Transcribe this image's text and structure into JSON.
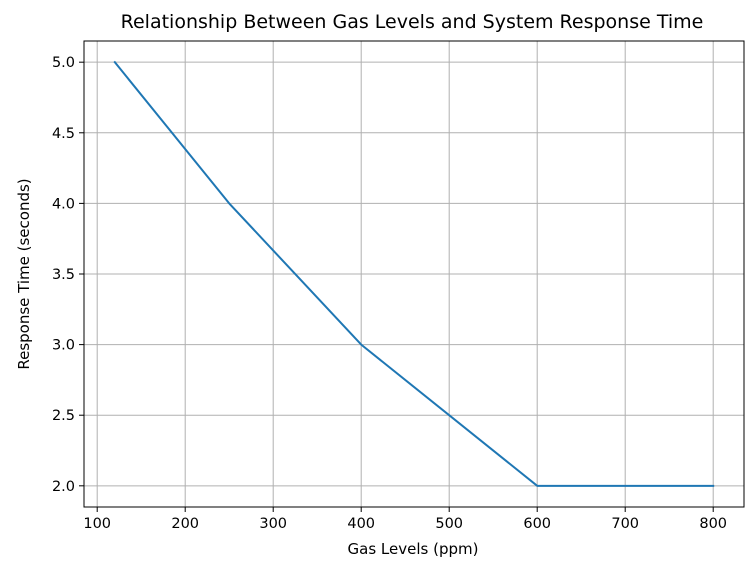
{
  "chart_data": {
    "type": "line",
    "title": "Relationship Between Gas Levels and System Response Time",
    "xlabel": "Gas Levels (ppm)",
    "ylabel": "Response Time (seconds)",
    "x": [
      120,
      250,
      400,
      600,
      800
    ],
    "series": [
      {
        "values": [
          5.0,
          4.0,
          3.0,
          2.0,
          2.0
        ]
      }
    ],
    "xlim": [
      85,
      835
    ],
    "ylim": [
      1.85,
      5.15
    ],
    "xticks": [
      "100",
      "200",
      "300",
      "400",
      "500",
      "600",
      "700",
      "800"
    ],
    "yticks": [
      "2.0",
      "2.5",
      "3.0",
      "3.5",
      "4.0",
      "4.5",
      "5.0"
    ],
    "grid": true,
    "line_color": "#1f77b4"
  }
}
